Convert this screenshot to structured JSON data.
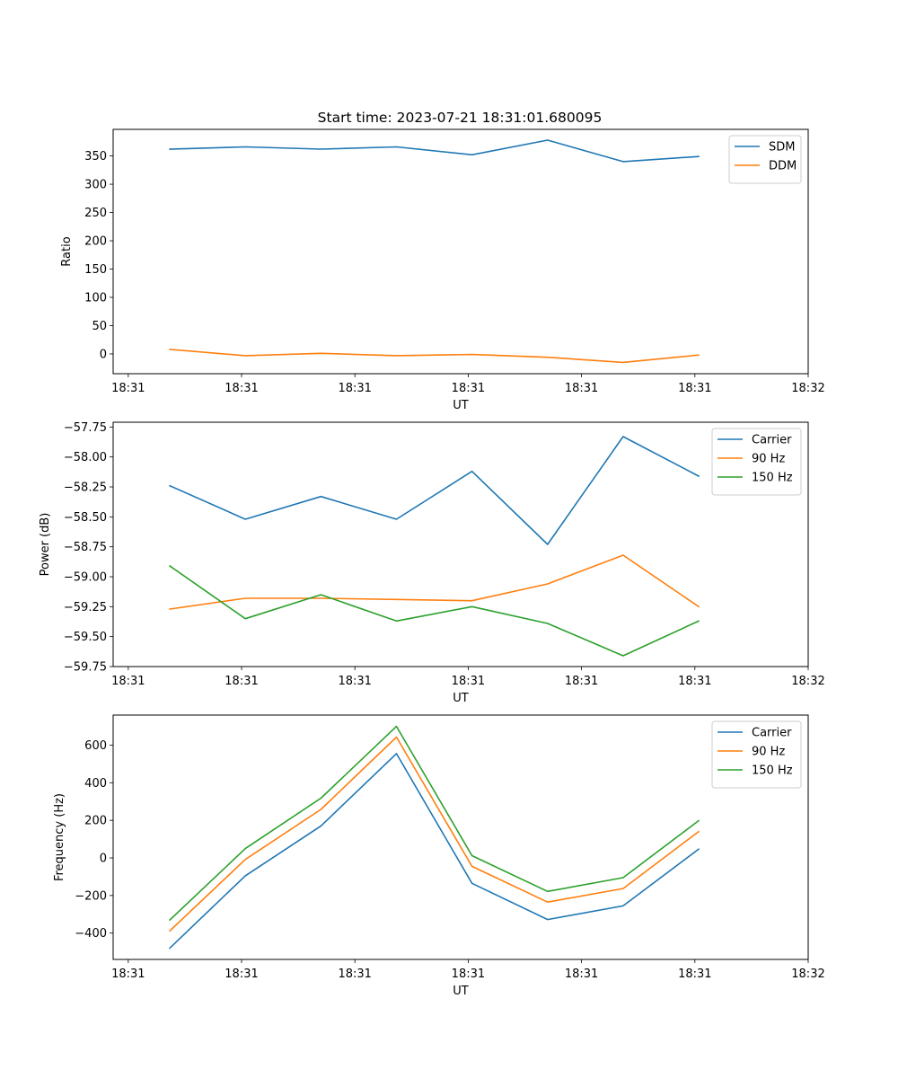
{
  "figure": {
    "title": "Start time: 2023-07-21 18:31:01.680095"
  },
  "colors": {
    "blue": "#1f77b4",
    "orange": "#ff7f0e",
    "green": "#2ca02c"
  },
  "chart_data": [
    {
      "type": "line",
      "title": "Start time: 2023-07-21 18:31:01.680095",
      "xlabel": "UT",
      "ylabel": "Ratio",
      "x": [
        1,
        2,
        3,
        4,
        5,
        6,
        7,
        8
      ],
      "xlim": [
        0.25,
        9.45
      ],
      "xticks": [
        0.45,
        1.95,
        3.45,
        4.95,
        6.45,
        7.95,
        9.45
      ],
      "xtick_labels": [
        "18:31",
        "18:31",
        "18:31",
        "18:31",
        "18:31",
        "18:31",
        "18:32"
      ],
      "ylim": [
        -35,
        397
      ],
      "yticks": [
        0,
        50,
        100,
        150,
        200,
        250,
        300,
        350
      ],
      "ytick_labels": [
        "0",
        "50",
        "100",
        "150",
        "200",
        "250",
        "300",
        "350"
      ],
      "legend": "top-right",
      "series": [
        {
          "name": "SDM",
          "color": "#1f77b4",
          "values": [
            362,
            366,
            362,
            366,
            352,
            378,
            340,
            349
          ]
        },
        {
          "name": "DDM",
          "color": "#ff7f0e",
          "values": [
            8,
            -3,
            1,
            -3,
            -1,
            -6,
            -15,
            -2
          ]
        }
      ]
    },
    {
      "type": "line",
      "title": "",
      "xlabel": "UT",
      "ylabel": "Power (dB)",
      "x": [
        1,
        2,
        3,
        4,
        5,
        6,
        7,
        8
      ],
      "xlim": [
        0.25,
        9.45
      ],
      "xticks": [
        0.45,
        1.95,
        3.45,
        4.95,
        6.45,
        7.95,
        9.45
      ],
      "xtick_labels": [
        "18:31",
        "18:31",
        "18:31",
        "18:31",
        "18:31",
        "18:31",
        "18:32"
      ],
      "ylim": [
        -59.75,
        -57.71
      ],
      "yticks": [
        -59.75,
        -59.5,
        -59.25,
        -59.0,
        -58.75,
        -58.5,
        -58.25,
        -58.0,
        -57.75
      ],
      "ytick_labels": [
        "−59.75",
        "−59.50",
        "−59.25",
        "−59.00",
        "−58.75",
        "−58.50",
        "−58.25",
        "−58.00",
        "−57.75"
      ],
      "legend": "top-right",
      "series": [
        {
          "name": "Carrier",
          "color": "#1f77b4",
          "values": [
            -58.24,
            -58.52,
            -58.33,
            -58.52,
            -58.12,
            -58.73,
            -57.83,
            -58.16
          ]
        },
        {
          "name": "90 Hz",
          "color": "#ff7f0e",
          "values": [
            -59.27,
            -59.18,
            -59.18,
            -59.19,
            -59.2,
            -59.06,
            -58.82,
            -59.25
          ]
        },
        {
          "name": "150 Hz",
          "color": "#2ca02c",
          "values": [
            -58.91,
            -59.35,
            -59.15,
            -59.37,
            -59.25,
            -59.39,
            -59.66,
            -59.37
          ]
        }
      ]
    },
    {
      "type": "line",
      "title": "",
      "xlabel": "UT",
      "ylabel": "Frequency (Hz)",
      "x": [
        1,
        2,
        3,
        4,
        5,
        6,
        7,
        8
      ],
      "xlim": [
        0.25,
        9.45
      ],
      "xticks": [
        0.45,
        1.95,
        3.45,
        4.95,
        6.45,
        7.95,
        9.45
      ],
      "xtick_labels": [
        "18:31",
        "18:31",
        "18:31",
        "18:31",
        "18:31",
        "18:31",
        "18:32"
      ],
      "ylim": [
        -540,
        760
      ],
      "yticks": [
        -400,
        -200,
        0,
        200,
        400,
        600
      ],
      "ytick_labels": [
        "−400",
        "−200",
        "0",
        "200",
        "400",
        "600"
      ],
      "legend": "top-right",
      "series": [
        {
          "name": "Carrier",
          "color": "#1f77b4",
          "values": [
            -480,
            -95,
            170,
            555,
            -135,
            -328,
            -255,
            47
          ]
        },
        {
          "name": "90 Hz",
          "color": "#ff7f0e",
          "values": [
            -388,
            -8,
            258,
            643,
            -45,
            -235,
            -163,
            140
          ]
        },
        {
          "name": "150 Hz",
          "color": "#2ca02c",
          "values": [
            -330,
            50,
            318,
            700,
            12,
            -178,
            -105,
            198
          ]
        }
      ]
    }
  ]
}
